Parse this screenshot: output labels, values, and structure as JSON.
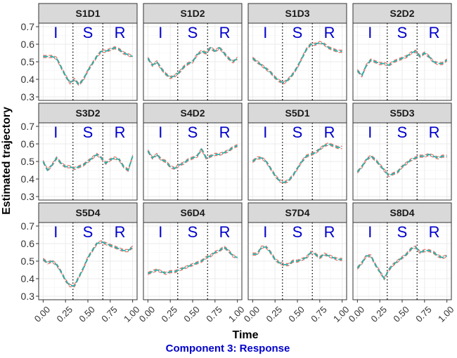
{
  "figure": {
    "ylabel": "Estimated trajectory",
    "xlabel": "Time",
    "subtitle": "Component 3: Response",
    "phase_labels": [
      "I",
      "S",
      "R"
    ]
  },
  "colors": {
    "strip_bg": "#d9d9d9",
    "panel_border": "#333333",
    "grid": "#ebebeb",
    "line_teal": "#20b2aa",
    "line_red": "#e8746b",
    "phase_text": "#0000cc",
    "subtitle": "#0000cc",
    "axis_text": "#333333",
    "vline": "#000000"
  },
  "chart_data": {
    "type": "line",
    "facet_layout": {
      "rows": 3,
      "cols": 4
    },
    "xlim": [
      -0.05,
      1.05
    ],
    "ylim": [
      0.28,
      0.72
    ],
    "x_ticks": [
      0,
      0.25,
      0.5,
      0.75,
      1
    ],
    "x_tick_labels": [
      "0.00",
      "0.25",
      "0.50",
      "0.75",
      "1.00"
    ],
    "y_ticks": [
      0.3,
      0.4,
      0.5,
      0.6,
      0.7
    ],
    "y_tick_labels": [
      "0.3",
      "0.4",
      "0.5",
      "0.6",
      "0.7"
    ],
    "phase_boundaries": [
      0.333,
      0.667
    ],
    "x": [
      0,
      0.05,
      0.1,
      0.15,
      0.2,
      0.25,
      0.3,
      0.35,
      0.4,
      0.45,
      0.5,
      0.55,
      0.6,
      0.65,
      0.7,
      0.75,
      0.8,
      0.85,
      0.9,
      0.95,
      1.0
    ],
    "panels": [
      {
        "title": "S1D1",
        "values": [
          0.53,
          0.53,
          0.53,
          0.52,
          0.47,
          0.42,
          0.38,
          0.4,
          0.37,
          0.4,
          0.45,
          0.49,
          0.53,
          0.56,
          0.56,
          0.57,
          0.58,
          0.57,
          0.55,
          0.54,
          0.53
        ]
      },
      {
        "title": "S1D2",
        "values": [
          0.52,
          0.48,
          0.5,
          0.46,
          0.43,
          0.41,
          0.42,
          0.44,
          0.47,
          0.49,
          0.5,
          0.54,
          0.56,
          0.55,
          0.58,
          0.56,
          0.58,
          0.55,
          0.52,
          0.5,
          0.52
        ]
      },
      {
        "title": "S1D3",
        "values": [
          0.52,
          0.5,
          0.48,
          0.46,
          0.44,
          0.41,
          0.39,
          0.38,
          0.4,
          0.43,
          0.47,
          0.52,
          0.57,
          0.6,
          0.6,
          0.61,
          0.6,
          0.58,
          0.57,
          0.56,
          0.56
        ]
      },
      {
        "title": "S2D2",
        "values": [
          0.45,
          0.42,
          0.48,
          0.51,
          0.5,
          0.49,
          0.49,
          0.48,
          0.5,
          0.51,
          0.52,
          0.53,
          0.55,
          0.56,
          0.53,
          0.55,
          0.53,
          0.5,
          0.49,
          0.49,
          0.51
        ]
      },
      {
        "title": "S3D2",
        "values": [
          0.5,
          0.45,
          0.48,
          0.52,
          0.49,
          0.47,
          0.47,
          0.46,
          0.47,
          0.48,
          0.5,
          0.52,
          0.54,
          0.52,
          0.49,
          0.51,
          0.52,
          0.51,
          0.47,
          0.45,
          0.53
        ]
      },
      {
        "title": "S4D2",
        "values": [
          0.56,
          0.52,
          0.54,
          0.51,
          0.5,
          0.47,
          0.46,
          0.48,
          0.49,
          0.51,
          0.52,
          0.53,
          0.57,
          0.52,
          0.53,
          0.54,
          0.54,
          0.55,
          0.56,
          0.58,
          0.59
        ]
      },
      {
        "title": "S5D1",
        "values": [
          0.5,
          0.52,
          0.52,
          0.5,
          0.46,
          0.42,
          0.39,
          0.38,
          0.39,
          0.42,
          0.46,
          0.5,
          0.53,
          0.54,
          0.55,
          0.57,
          0.59,
          0.6,
          0.59,
          0.58,
          0.58
        ]
      },
      {
        "title": "S5D3",
        "values": [
          0.44,
          0.47,
          0.51,
          0.53,
          0.51,
          0.48,
          0.45,
          0.42,
          0.43,
          0.44,
          0.47,
          0.49,
          0.51,
          0.52,
          0.53,
          0.53,
          0.54,
          0.53,
          0.52,
          0.53,
          0.53
        ]
      },
      {
        "title": "S5D4",
        "values": [
          0.51,
          0.49,
          0.5,
          0.48,
          0.44,
          0.39,
          0.36,
          0.36,
          0.41,
          0.46,
          0.52,
          0.56,
          0.6,
          0.61,
          0.6,
          0.59,
          0.58,
          0.57,
          0.56,
          0.56,
          0.58
        ]
      },
      {
        "title": "S6D4",
        "values": [
          0.43,
          0.44,
          0.45,
          0.44,
          0.43,
          0.44,
          0.44,
          0.45,
          0.46,
          0.47,
          0.48,
          0.49,
          0.5,
          0.52,
          0.53,
          0.55,
          0.56,
          0.58,
          0.56,
          0.53,
          0.52
        ]
      },
      {
        "title": "S7D4",
        "values": [
          0.54,
          0.54,
          0.58,
          0.58,
          0.55,
          0.51,
          0.49,
          0.48,
          0.48,
          0.5,
          0.5,
          0.51,
          0.52,
          0.55,
          0.54,
          0.52,
          0.54,
          0.53,
          0.52,
          0.51,
          0.51
        ]
      },
      {
        "title": "S8D4",
        "values": [
          0.46,
          0.49,
          0.53,
          0.53,
          0.48,
          0.44,
          0.4,
          0.45,
          0.48,
          0.5,
          0.52,
          0.54,
          0.57,
          0.58,
          0.55,
          0.56,
          0.56,
          0.55,
          0.53,
          0.52,
          0.53
        ]
      }
    ]
  }
}
